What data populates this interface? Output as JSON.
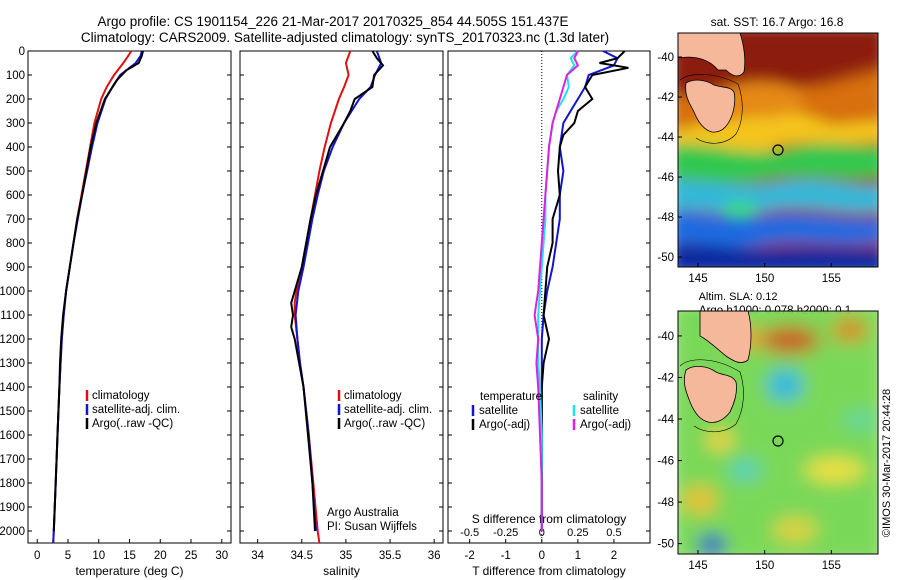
{
  "header": {
    "line1": "Argo profile: CS 1901154_226 21-Mar-2017 20170325_854 44.505S 151.437E",
    "line2": "Climatology: CARS2009. Satellite-adjusted climatology: synTS_20170323.nc (1.3d later)"
  },
  "colors": {
    "climatology": "#e01010",
    "satellite": "#1414d0",
    "argo": "#000000",
    "satellite_salinity": "#20e0f0",
    "argo_salinity": "#e020e0"
  },
  "depth_ticks": [
    "0",
    "100",
    "200",
    "300",
    "400",
    "500",
    "600",
    "700",
    "800",
    "900",
    "1000",
    "1100",
    "1200",
    "1300",
    "1400",
    "1500",
    "1600",
    "1700",
    "1800",
    "1900",
    "2000"
  ],
  "chart_data": [
    {
      "type": "line",
      "xlabel": "temperature (deg C)",
      "xlim": [
        -1.5,
        31.5
      ],
      "ylim": [
        2050,
        0
      ],
      "x_ticks": [
        "0",
        "5",
        "10",
        "15",
        "20",
        "25",
        "30"
      ],
      "legend": [
        "climatology",
        "satellite-adj. clim.",
        "Argo(..raw -QC)"
      ],
      "series": [
        {
          "name": "climatology",
          "color": "#e01010",
          "depth": [
            0,
            20,
            50,
            100,
            150,
            200,
            300,
            400,
            500,
            600,
            700,
            800,
            900,
            1000,
            1100,
            1200,
            1300,
            1400,
            1600,
            1800,
            2000,
            2050
          ],
          "values": [
            15.3,
            14.8,
            14.0,
            12.5,
            11.3,
            10.4,
            9.3,
            8.6,
            7.9,
            7.2,
            6.5,
            5.9,
            5.3,
            4.7,
            4.3,
            4.0,
            3.8,
            3.6,
            3.3,
            3.0,
            2.7,
            2.6
          ]
        },
        {
          "name": "satellite-adj. clim.",
          "color": "#1414d0",
          "depth": [
            0,
            20,
            50,
            100,
            150,
            200,
            300,
            400,
            500,
            600,
            700,
            800,
            900,
            1000,
            1100,
            1200,
            1300,
            1400,
            1600,
            1800,
            2000,
            2050
          ],
          "values": [
            17.0,
            16.8,
            16.0,
            13.5,
            12.2,
            11.1,
            9.8,
            8.9,
            8.1,
            7.3,
            6.6,
            5.9,
            5.3,
            4.7,
            4.3,
            4.0,
            3.8,
            3.6,
            3.3,
            3.0,
            2.7,
            2.6
          ]
        },
        {
          "name": "Argo(..raw -QC)",
          "color": "#000000",
          "depth": [
            0,
            20,
            50,
            80,
            120,
            200,
            300,
            400,
            500,
            600,
            700,
            800,
            900,
            1000,
            1100,
            1200,
            1300,
            1400,
            1600,
            1800,
            2000
          ],
          "values": [
            17.2,
            17.0,
            16.5,
            14.5,
            13.0,
            11.0,
            9.6,
            8.7,
            8.0,
            7.3,
            6.5,
            5.9,
            5.3,
            4.7,
            4.2,
            3.9,
            3.7,
            3.6,
            3.3,
            3.0,
            2.7
          ]
        }
      ]
    },
    {
      "type": "line",
      "xlabel": "salinity",
      "xlim": [
        33.8,
        36.1
      ],
      "ylim": [
        2050,
        0
      ],
      "x_ticks": [
        "34",
        "34.5",
        "35",
        "35.5",
        "36"
      ],
      "legend": [
        "climatology",
        "satellite-adj. clim.",
        "Argo(..raw -QC)"
      ],
      "annotation": [
        "Argo Australia",
        "PI: Susan Wijffels"
      ],
      "series": [
        {
          "name": "climatology",
          "color": "#e01010",
          "depth": [
            0,
            50,
            100,
            150,
            200,
            300,
            400,
            500,
            600,
            700,
            800,
            900,
            1000,
            1050,
            1100,
            1200,
            1300,
            1400,
            1600,
            1800,
            2000,
            2050
          ],
          "values": [
            35.05,
            35.0,
            35.03,
            34.98,
            34.92,
            34.83,
            34.76,
            34.7,
            34.65,
            34.6,
            34.55,
            34.5,
            34.44,
            34.42,
            34.42,
            34.45,
            34.48,
            34.52,
            34.58,
            34.63,
            34.68,
            34.7
          ]
        },
        {
          "name": "satellite-adj. clim.",
          "color": "#1414d0",
          "depth": [
            0,
            50,
            100,
            150,
            200,
            300,
            400,
            500,
            600,
            700,
            800,
            900,
            1000,
            1100,
            1200,
            1300,
            1400,
            1600,
            1800,
            2000
          ],
          "values": [
            35.35,
            35.4,
            35.33,
            35.28,
            35.15,
            34.98,
            34.85,
            34.75,
            34.68,
            34.62,
            34.57,
            34.52,
            34.46,
            34.43,
            34.45,
            34.48,
            34.52,
            34.58,
            34.62,
            34.66
          ]
        },
        {
          "name": "Argo(..raw -QC)",
          "color": "#000000",
          "depth": [
            0,
            30,
            60,
            100,
            150,
            200,
            250,
            300,
            400,
            500,
            600,
            700,
            800,
            900,
            1000,
            1050,
            1100,
            1150,
            1200,
            1300,
            1400,
            1600,
            1800,
            2000
          ],
          "values": [
            35.3,
            35.35,
            35.42,
            35.32,
            35.3,
            35.1,
            35.05,
            34.98,
            34.82,
            34.74,
            34.66,
            34.6,
            34.55,
            34.5,
            34.42,
            34.38,
            34.4,
            34.38,
            34.42,
            34.47,
            34.52,
            34.57,
            34.62,
            34.65
          ]
        }
      ]
    },
    {
      "type": "line",
      "xlabel": "T difference from climatology",
      "xlabel_top": "S difference from climatology",
      "xlim": [
        -2.6,
        3.0
      ],
      "ylim": [
        2050,
        0
      ],
      "x_ticks": [
        "-2",
        "-1",
        "0",
        "1",
        "2"
      ],
      "s_ticks": [
        "-0.5",
        "-0.25",
        "0",
        "0.25",
        "0.5"
      ],
      "legend_temperature": [
        "temperature",
        "satellite",
        "Argo(-adj)"
      ],
      "legend_salinity": [
        "salinity",
        "satellite",
        "Argo(-adj)"
      ],
      "series": [
        {
          "name": "satellite",
          "color": "#1414d0",
          "depth": [
            0,
            30,
            60,
            100,
            150,
            200,
            250,
            300,
            400,
            500,
            600,
            700,
            800,
            900,
            1000,
            1100,
            1200,
            1300,
            1400,
            1600,
            1800,
            2000
          ],
          "values": [
            1.7,
            2.1,
            2.0,
            1.3,
            1.2,
            1.0,
            0.8,
            0.6,
            0.5,
            0.6,
            0.5,
            0.5,
            0.4,
            0.3,
            0.15,
            0.05,
            0.0,
            0.0,
            0.0,
            0.0,
            0.0,
            0.0
          ]
        },
        {
          "name": "Argo(-adj)",
          "color": "#000000",
          "depth": [
            0,
            30,
            50,
            70,
            100,
            150,
            200,
            250,
            300,
            350,
            400,
            500,
            600,
            700,
            800,
            900,
            1000,
            1100,
            1200,
            1300,
            1400,
            1600,
            1800,
            2000
          ],
          "values": [
            2.3,
            2.1,
            1.6,
            2.4,
            1.4,
            1.2,
            1.4,
            1.0,
            0.9,
            0.6,
            0.5,
            0.45,
            0.5,
            0.3,
            0.3,
            0.15,
            0.1,
            0.05,
            0.2,
            0.05,
            0.0,
            0.0,
            0.0,
            0.0
          ]
        },
        {
          "name": "salinity satellite",
          "color": "#20e0f0",
          "depth": [
            0,
            30,
            60,
            100,
            150,
            200,
            250,
            300,
            400,
            500,
            600,
            700,
            800,
            900,
            1000,
            1100,
            1200,
            1300,
            1400,
            1600,
            1800,
            2000
          ],
          "values": [
            1.0,
            0.8,
            0.9,
            0.7,
            0.75,
            0.6,
            0.4,
            0.3,
            0.2,
            0.15,
            0.1,
            0.1,
            0.05,
            0.0,
            -0.05,
            -0.1,
            -0.1,
            -0.1,
            -0.05,
            0.0,
            0.0,
            0.0
          ]
        },
        {
          "name": "salinity Argo(-adj)",
          "color": "#e020e0",
          "depth": [
            0,
            30,
            60,
            100,
            150,
            200,
            300,
            400,
            500,
            600,
            700,
            800,
            900,
            1000,
            1100,
            1200,
            1300,
            1400,
            1600,
            1800,
            2000
          ],
          "values": [
            1.0,
            0.9,
            1.0,
            0.7,
            0.6,
            0.5,
            0.3,
            0.2,
            0.15,
            0.1,
            0.05,
            0.0,
            -0.05,
            -0.1,
            -0.2,
            -0.1,
            -0.15,
            -0.1,
            -0.05,
            0.0,
            0.0
          ]
        }
      ]
    },
    {
      "type": "heatmap",
      "title": "sat. SST: 16.7 Argo: 16.8",
      "x_ticks": [
        "145",
        "150",
        "155"
      ],
      "y_ticks": [
        "-40",
        "-42",
        "-44",
        "-46",
        "-48",
        "-50"
      ],
      "xlim": [
        143.5,
        158.5
      ],
      "ylim": [
        -50.5,
        -38.8
      ],
      "argo_position": {
        "lon": 151.437,
        "lat": -44.505
      }
    },
    {
      "type": "heatmap",
      "title_line1": "Altim. SLA: 0.12",
      "title_line2": "Argo h1000: 0.078 h2000: 0.1",
      "x_ticks": [
        "145",
        "150",
        "155"
      ],
      "y_ticks": [
        "-40",
        "-42",
        "-44",
        "-46",
        "-48",
        "-50"
      ],
      "xlim": [
        143.5,
        158.5
      ],
      "ylim": [
        -50.5,
        -38.8
      ],
      "argo_position": {
        "lon": 151.437,
        "lat": -44.505
      }
    }
  ],
  "watermark": "©IMOS 30-Mar-2017 20:44:28"
}
